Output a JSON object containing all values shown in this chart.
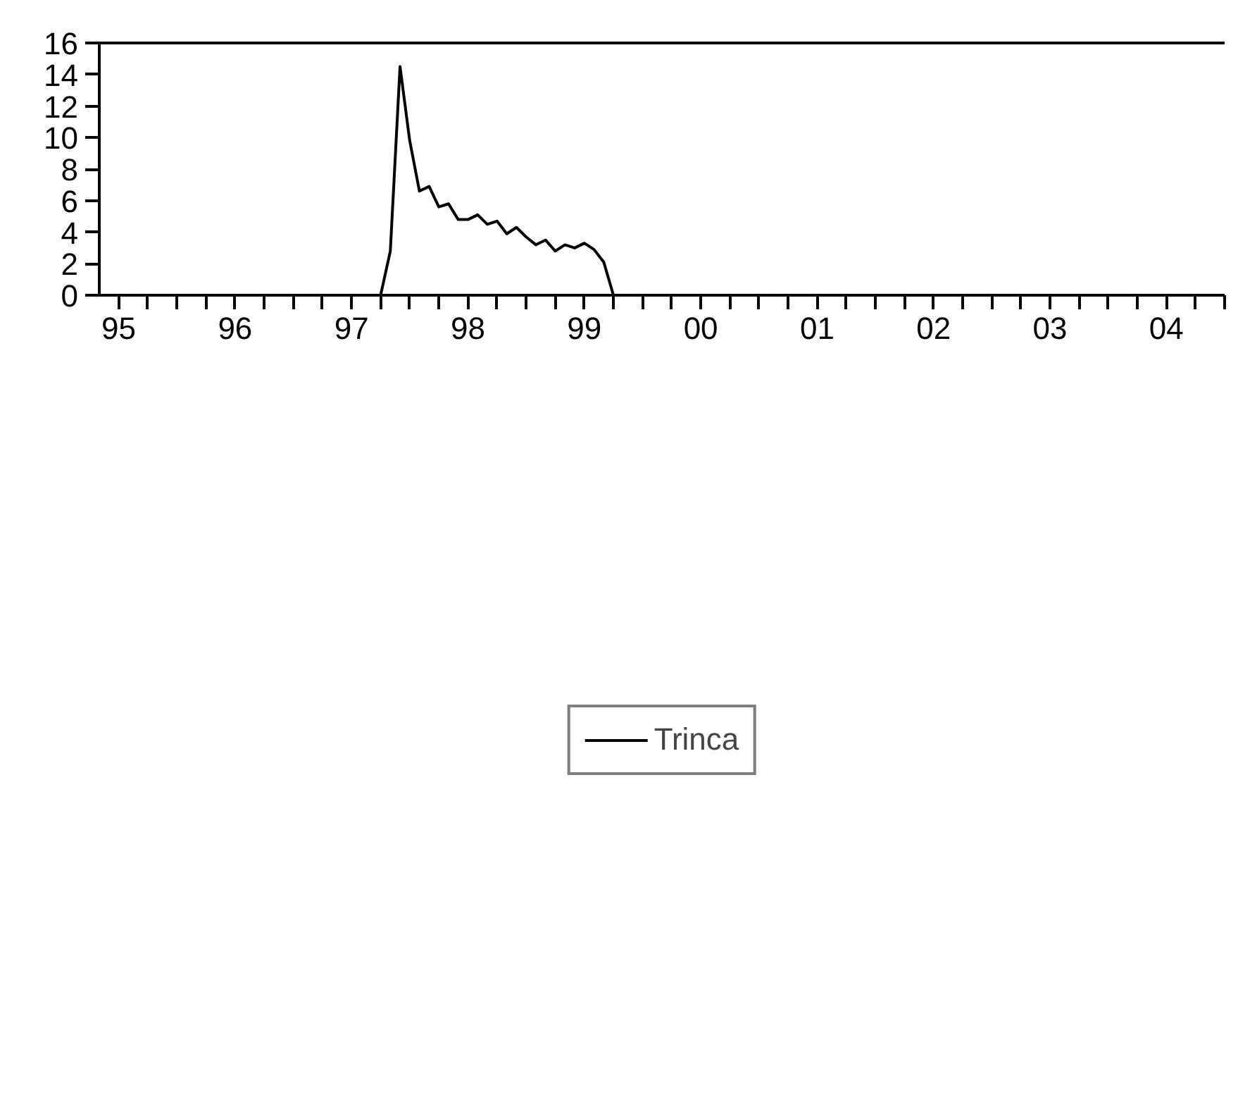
{
  "chart_data": {
    "type": "line",
    "x": [
      "1995-05",
      "1997-10",
      "1997-11",
      "1997-12",
      "1998-01",
      "1998-02",
      "1998-03",
      "1998-04",
      "1998-05",
      "1998-06",
      "1998-07",
      "1998-08",
      "1998-09",
      "1998-10",
      "1998-11",
      "1998-12",
      "1999-01",
      "1999-02",
      "1999-03",
      "1999-04",
      "1999-05",
      "1999-06",
      "1999-07",
      "1999-08",
      "1999-09",
      "1999-10",
      "2005-01"
    ],
    "series": [
      {
        "name": "Trinca",
        "color": "#000000",
        "values": [
          0,
          0,
          2.8,
          14.5,
          9.8,
          6.6,
          6.9,
          5.6,
          5.8,
          4.8,
          4.8,
          5.1,
          4.5,
          4.7,
          3.9,
          4.3,
          3.7,
          3.2,
          3.5,
          2.8,
          3.2,
          3.0,
          3.3,
          2.9,
          2.1,
          0,
          0
        ]
      }
    ],
    "xlim": [
      "1995-05",
      "2005-01"
    ],
    "xticks": [
      {
        "value": "1995-07",
        "label": "95"
      },
      {
        "value": "1995-10",
        "label": null
      },
      {
        "value": "1996-01",
        "label": null
      },
      {
        "value": "1996-04",
        "label": null
      },
      {
        "value": "1996-07",
        "label": "96"
      },
      {
        "value": "1996-10",
        "label": null
      },
      {
        "value": "1997-01",
        "label": null
      },
      {
        "value": "1997-04",
        "label": null
      },
      {
        "value": "1997-07",
        "label": "97"
      },
      {
        "value": "1997-10",
        "label": null
      },
      {
        "value": "1998-01",
        "label": null
      },
      {
        "value": "1998-04",
        "label": null
      },
      {
        "value": "1998-07",
        "label": "98"
      },
      {
        "value": "1998-10",
        "label": null
      },
      {
        "value": "1999-01",
        "label": null
      },
      {
        "value": "1999-04",
        "label": null
      },
      {
        "value": "1999-07",
        "label": "99"
      },
      {
        "value": "1999-10",
        "label": null
      },
      {
        "value": "2000-01",
        "label": null
      },
      {
        "value": "2000-04",
        "label": null
      },
      {
        "value": "2000-07",
        "label": "00"
      },
      {
        "value": "2000-10",
        "label": null
      },
      {
        "value": "2001-01",
        "label": null
      },
      {
        "value": "2001-04",
        "label": null
      },
      {
        "value": "2001-07",
        "label": "01"
      },
      {
        "value": "2001-10",
        "label": null
      },
      {
        "value": "2002-01",
        "label": null
      },
      {
        "value": "2002-04",
        "label": null
      },
      {
        "value": "2002-07",
        "label": "02"
      },
      {
        "value": "2002-10",
        "label": null
      },
      {
        "value": "2003-01",
        "label": null
      },
      {
        "value": "2003-04",
        "label": null
      },
      {
        "value": "2003-07",
        "label": "03"
      },
      {
        "value": "2003-10",
        "label": null
      },
      {
        "value": "2004-01",
        "label": null
      },
      {
        "value": "2004-04",
        "label": null
      },
      {
        "value": "2004-07",
        "label": "04"
      },
      {
        "value": "2004-10",
        "label": null
      },
      {
        "value": "2005-01",
        "label": null
      }
    ],
    "ylim": [
      0,
      16
    ],
    "yticks": [
      0,
      2,
      4,
      6,
      8,
      10,
      12,
      14,
      16
    ],
    "grid": false,
    "legend": "bottom",
    "line_style": "solid"
  }
}
